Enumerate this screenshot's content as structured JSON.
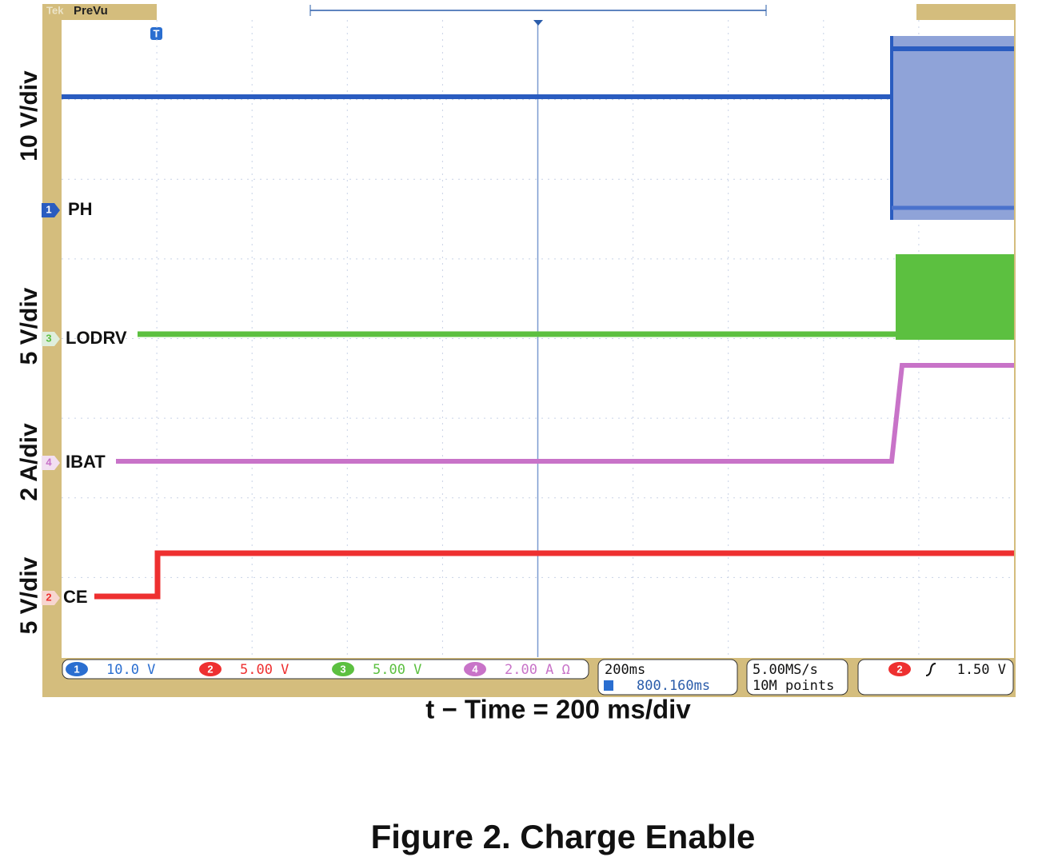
{
  "screen": {
    "brand": "Tek",
    "mode": "PreVu",
    "trigger_marker": "T"
  },
  "axis_labels": [
    "10 V/div",
    "5 V/div",
    "2 A/div",
    "5 V/div"
  ],
  "channels": [
    {
      "number": "1",
      "label": "PH"
    },
    {
      "number": "3",
      "label": "LODRV"
    },
    {
      "number": "4",
      "label": "IBAT"
    },
    {
      "number": "2",
      "label": "CE"
    }
  ],
  "readouts": {
    "channels": [
      {
        "number": "1",
        "scale": "10.0 V"
      },
      {
        "number": "2",
        "scale": "5.00 V"
      },
      {
        "number": "3",
        "scale": "5.00 V"
      },
      {
        "number": "4",
        "scale": "2.00 A Ω"
      }
    ],
    "timebase": "200ms",
    "trigger_position": "800.160ms",
    "sample_rate": "5.00MS/s",
    "record_length": "10M points",
    "trigger": {
      "source": "2",
      "level": "1.50 V"
    }
  },
  "x_label": "t − Time = 200 ms/div",
  "caption": "Figure 2. Charge Enable"
}
